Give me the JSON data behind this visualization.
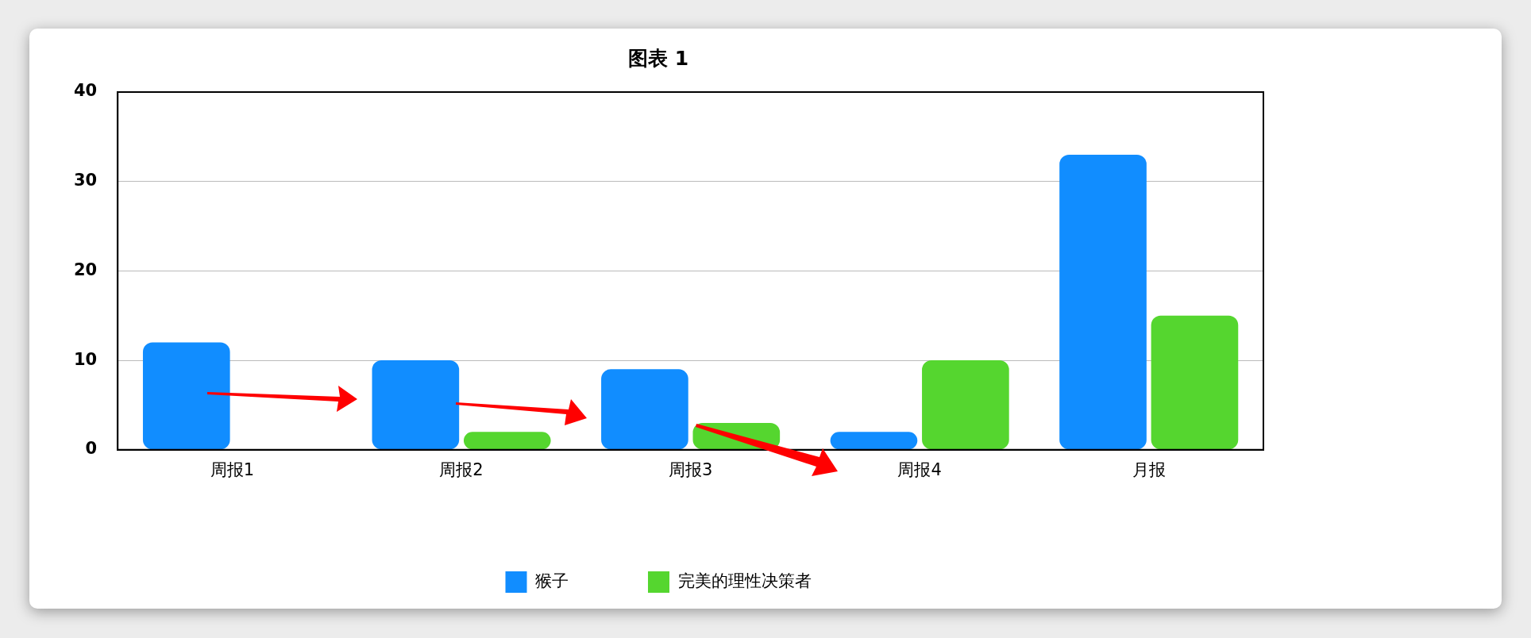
{
  "chart_data": {
    "type": "bar",
    "title": "图表 1",
    "categories": [
      "周报1",
      "周报2",
      "周报3",
      "周报4",
      "月报"
    ],
    "series": [
      {
        "name": "猴子",
        "color": "#118dff",
        "values": [
          12,
          10,
          9,
          2,
          33
        ]
      },
      {
        "name": "完美的理性决策者",
        "color": "#55d62f",
        "values": [
          null,
          2,
          3,
          10,
          15
        ]
      }
    ],
    "ylim": [
      0,
      40
    ],
    "yticks": [
      0,
      10,
      20,
      30,
      40
    ],
    "grid": "y",
    "legend": "bottom"
  }
}
